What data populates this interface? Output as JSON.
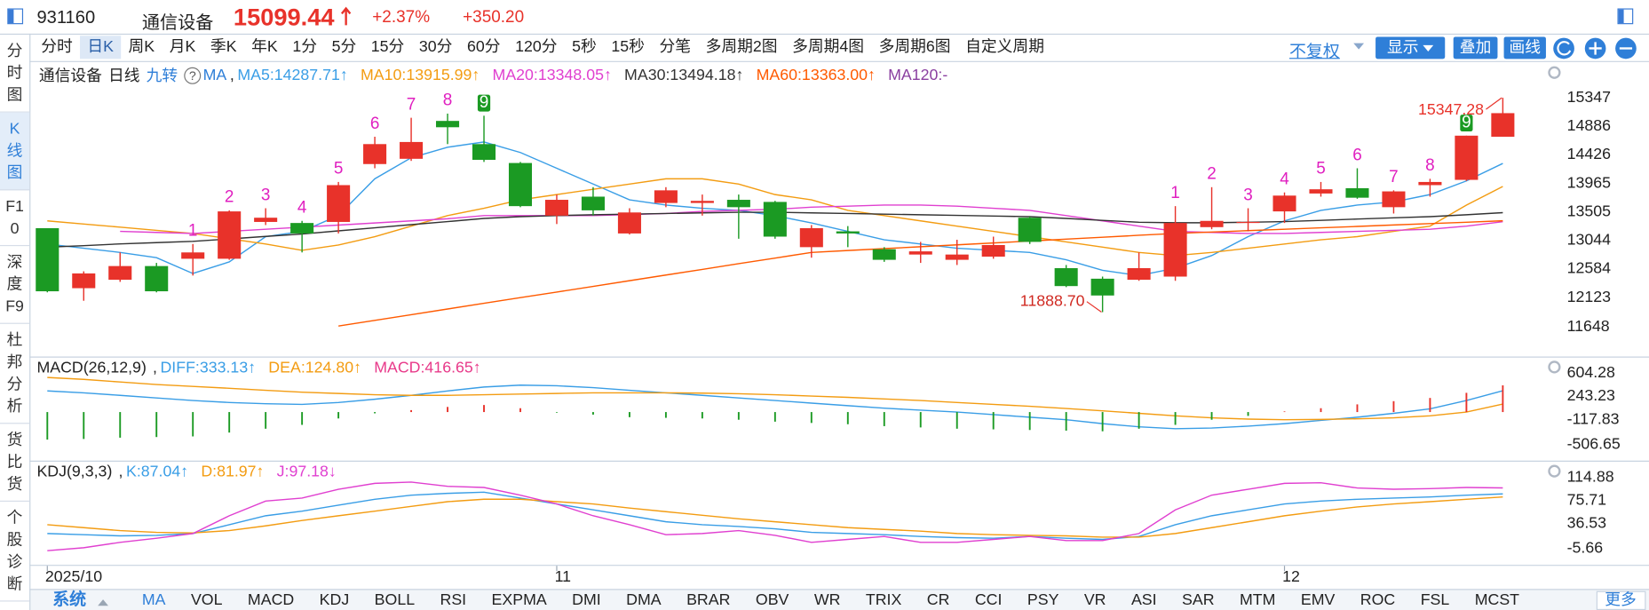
{
  "header": {
    "code": "931160",
    "name": "通信设备",
    "price": 15099.44,
    "change_pct": "+2.37%",
    "change": "+350.20"
  },
  "side_tabs": [
    "分时图",
    "K线图",
    "F10",
    "深度F9",
    "杜邦分析",
    "货比货",
    "个股诊断"
  ],
  "side_active": 1,
  "period_tabs": [
    "分时",
    "日K",
    "周K",
    "月K",
    "季K",
    "年K",
    "1分",
    "5分",
    "15分",
    "30分",
    "60分",
    "120分",
    "5秒",
    "15秒",
    "分笔",
    "多周期2图",
    "多周期4图",
    "多周期6图",
    "自定义周期"
  ],
  "period_active": 1,
  "toolbar": {
    "fq": "不复权",
    "show": "显示",
    "overlay": "叠加",
    "draw": "画线"
  },
  "indicator_tabs": {
    "system": "系统",
    "items": [
      "MA",
      "VOL",
      "MACD",
      "KDJ",
      "BOLL",
      "RSI",
      "EXPMA",
      "DMI",
      "DMA",
      "BRAR",
      "OBV",
      "WR",
      "TRIX",
      "CR",
      "CCI",
      "PSY",
      "VR",
      "ASI",
      "SAR",
      "MTM",
      "EMV",
      "ROC",
      "FSL",
      "MCST"
    ],
    "active": 0,
    "more": "更多"
  },
  "chart_data": [
    {
      "type": "candlestick",
      "title": "通信设备",
      "period": "日线",
      "td_name": "九转",
      "help": "?",
      "indicator": "MA",
      "separator": ",",
      "categories": [
        "2025/10",
        null,
        null,
        null,
        null,
        null,
        null,
        null,
        null,
        null,
        null,
        null,
        null,
        null,
        "11",
        null,
        null,
        null,
        null,
        null,
        null,
        null,
        null,
        null,
        null,
        null,
        null,
        null,
        null,
        null,
        null,
        null,
        null,
        null,
        "12",
        null,
        null,
        null,
        null,
        null,
        null
      ],
      "open": [
        13243,
        12275,
        12411,
        12632,
        12750,
        12750,
        13344,
        13327,
        13344,
        14278,
        14363,
        14974,
        14600,
        14295,
        13446,
        13752,
        13158,
        13650,
        13650,
        13701,
        13667,
        12937,
        13192,
        12903,
        12818,
        12733,
        12784,
        13412,
        12598,
        12428,
        12411,
        12462,
        13260,
        13327,
        13514,
        13803,
        13888,
        13582,
        13938,
        14023,
        14719
      ],
      "high": [
        13243,
        12547,
        12852,
        12683,
        12988,
        13531,
        13565,
        13361,
        13989,
        14719,
        15025,
        15092,
        15058,
        14312,
        13786,
        13905,
        13565,
        13905,
        13786,
        13786,
        13684,
        13294,
        13277,
        12937,
        13022,
        13056,
        13107,
        13429,
        12649,
        12462,
        12852,
        13599,
        13905,
        13565,
        13820,
        13989,
        14210,
        13854,
        14040,
        14736,
        15347.28
      ],
      "low": [
        12208,
        12072,
        12377,
        12208,
        12479,
        12733,
        13294,
        12852,
        13158,
        14210,
        14329,
        14600,
        14312,
        13582,
        13310,
        13446,
        13141,
        13582,
        13446,
        13073,
        13073,
        12767,
        12937,
        12700,
        12683,
        12649,
        12750,
        12988,
        12292,
        11888.7,
        12394,
        12394,
        13226,
        13192,
        13327,
        13752,
        13718,
        13480,
        13752,
        14006,
        14719
      ],
      "close": [
        12225,
        12513,
        12632,
        12225,
        12852,
        13514,
        13412,
        13158,
        13938,
        14600,
        14634,
        14872,
        14346,
        13599,
        13701,
        13531,
        13497,
        13854,
        13684,
        13582,
        13107,
        13243,
        13158,
        12733,
        12869,
        12818,
        12971,
        13022,
        12309,
        12157,
        12598,
        13327,
        13361,
        13344,
        13769,
        13871,
        13735,
        13837,
        13989,
        14736,
        15099.44
      ],
      "up_color": "#e8322a",
      "down_color": "#1b9a23",
      "series": [
        {
          "name": "MA5:14287.71↑",
          "color": "#3a9ee6",
          "values": [
            12988,
            12920,
            12852,
            12767,
            12513,
            12700,
            13107,
            13192,
            13446,
            14040,
            14380,
            14550,
            14634,
            14465,
            14210,
            13955,
            13701,
            13616,
            13565,
            13531,
            13446,
            13327,
            13192,
            13056,
            12988,
            12920,
            12886,
            12852,
            12733,
            12564,
            12479,
            12598,
            12801,
            13107,
            13361,
            13531,
            13616,
            13667,
            13786,
            14006,
            14287.71
          ]
        },
        {
          "name": "MA10:13915.99↑",
          "color": "#f39c12",
          "values": [
            13361,
            13310,
            13260,
            13209,
            13158,
            13073,
            12988,
            12886,
            12971,
            13107,
            13277,
            13446,
            13565,
            13701,
            13786,
            13871,
            13955,
            14040,
            14040,
            13955,
            13786,
            13701,
            13531,
            13446,
            13361,
            13277,
            13192,
            13107,
            13022,
            12937,
            12852,
            12801,
            12852,
            12920,
            12988,
            13056,
            13107,
            13192,
            13277,
            13616,
            13915.99
          ]
        },
        {
          "name": "MA20:13348.05↑",
          "color": "#e040d0",
          "values": [
            null,
            null,
            13192,
            13175,
            13158,
            13192,
            13226,
            13260,
            13294,
            13327,
            13361,
            13395,
            13446,
            13446,
            13446,
            13446,
            13463,
            13480,
            13514,
            13531,
            13548,
            13582,
            13599,
            13616,
            13616,
            13599,
            13565,
            13531,
            13446,
            13361,
            13277,
            13192,
            13175,
            13158,
            13158,
            13175,
            13192,
            13209,
            13226,
            13277,
            13348.05
          ]
        },
        {
          "name": "MA30:13494.18↑",
          "color": "#333333",
          "values": [
            12937,
            12960,
            12990,
            13010,
            13030,
            13070,
            13110,
            13150,
            13200,
            13250,
            13300,
            13350,
            13400,
            13430,
            13446,
            13460,
            13470,
            13480,
            13490,
            13500,
            13500,
            13490,
            13480,
            13470,
            13460,
            13450,
            13440,
            13430,
            13400,
            13370,
            13340,
            13330,
            13330,
            13340,
            13350,
            13370,
            13390,
            13410,
            13430,
            13460,
            13494.18
          ]
        },
        {
          "name": "MA60:13363.00↑",
          "color": "#ff5a00",
          "values": [
            null,
            null,
            null,
            null,
            null,
            null,
            null,
            null,
            11665,
            11756,
            11848,
            11939,
            12030,
            12122,
            12213,
            12304,
            12396,
            12487,
            12578,
            12670,
            12761,
            12852,
            12883,
            12913,
            12944,
            12975,
            13005,
            13036,
            13066,
            13097,
            13128,
            13158,
            13181,
            13204,
            13226,
            13249,
            13272,
            13295,
            13318,
            13340,
            13363.0
          ]
        }
      ],
      "legend_note": "MA120:-",
      "legend_note_color": "#8a3fa0",
      "td_counts": [
        null,
        null,
        null,
        null,
        1,
        2,
        3,
        4,
        5,
        6,
        7,
        8,
        9,
        null,
        null,
        null,
        null,
        null,
        null,
        null,
        null,
        null,
        null,
        null,
        null,
        null,
        null,
        null,
        null,
        null,
        null,
        1,
        2,
        3,
        4,
        5,
        6,
        7,
        8,
        9,
        null
      ],
      "td_color": "#e020c0",
      "td_nine_color": "#1b9a23",
      "high_label": "15347.28",
      "low_label": "11888.70",
      "ylim": [
        11189,
        15907
      ],
      "yticks": [
        15347,
        14886,
        14426,
        13965,
        13505,
        13044,
        12584,
        12123,
        11648
      ]
    },
    {
      "type": "combo",
      "title": "MACD(26,12,9)",
      "separator": ",",
      "series": [
        {
          "name": "DIFF:333.13↑",
          "kind": "line",
          "color": "#3a9ee6",
          "values": [
            330,
            300,
            260,
            220,
            180,
            150,
            130,
            120,
            150,
            200,
            260,
            330,
            390,
            420,
            410,
            380,
            340,
            300,
            260,
            220,
            180,
            140,
            100,
            60,
            30,
            0,
            -40,
            -80,
            -120,
            -180,
            -230,
            -260,
            -250,
            -220,
            -180,
            -130,
            -80,
            -20,
            50,
            180,
            333.13
          ]
        },
        {
          "name": "DEA:124.80↑",
          "kind": "line",
          "color": "#f39c12",
          "values": [
            540,
            510,
            470,
            430,
            400,
            370,
            340,
            310,
            290,
            270,
            260,
            260,
            270,
            280,
            290,
            300,
            300,
            300,
            295,
            285,
            270,
            250,
            230,
            205,
            180,
            150,
            120,
            90,
            55,
            20,
            -20,
            -60,
            -90,
            -110,
            -120,
            -115,
            -105,
            -90,
            -60,
            0,
            124.8
          ]
        },
        {
          "name": "MACD:416.65↑",
          "kind": "bar",
          "color": "#e83a8a",
          "up_color": "#e8322a",
          "down_color": "#1b9a23",
          "values": [
            -430,
            -420,
            -400,
            -390,
            -380,
            -320,
            -260,
            -200,
            -100,
            -20,
            30,
            80,
            110,
            60,
            -10,
            -40,
            -80,
            -90,
            -100,
            -120,
            -150,
            -170,
            -190,
            -220,
            -240,
            -260,
            -270,
            -280,
            -290,
            -300,
            -260,
            -200,
            -120,
            -60,
            10,
            60,
            120,
            170,
            220,
            300,
            416.65
          ]
        }
      ],
      "ylim": [
        -742,
        850
      ],
      "yticks": [
        604.28,
        243.23,
        -117.83,
        -506.65
      ]
    },
    {
      "type": "combo",
      "title": "KDJ(9,3,3)",
      "separator": ",",
      "series": [
        {
          "name": "K:87.04↑",
          "kind": "line",
          "color": "#3a9ee6",
          "values": [
            20,
            18,
            16,
            17,
            20,
            35,
            50,
            58,
            68,
            78,
            85,
            88,
            90,
            80,
            70,
            60,
            50,
            40,
            35,
            32,
            28,
            22,
            20,
            18,
            15,
            13,
            12,
            15,
            12,
            10,
            15,
            35,
            50,
            60,
            70,
            75,
            78,
            80,
            82,
            85,
            87.04
          ]
        },
        {
          "name": "D:81.97↑",
          "kind": "line",
          "color": "#f39c12",
          "values": [
            35,
            30,
            25,
            22,
            21,
            25,
            33,
            42,
            50,
            58,
            66,
            74,
            78,
            78,
            74,
            70,
            63,
            57,
            51,
            45,
            40,
            35,
            30,
            27,
            24,
            20,
            18,
            17,
            16,
            14,
            14,
            20,
            30,
            40,
            50,
            58,
            65,
            70,
            74,
            78,
            81.97
          ]
        },
        {
          "name": "J:97.18↓",
          "kind": "line",
          "color": "#e040d0",
          "values": [
            -9,
            -4,
            5,
            12,
            20,
            50,
            75,
            80,
            95,
            105,
            107,
            100,
            98,
            85,
            70,
            50,
            35,
            18,
            20,
            25,
            17,
            5,
            10,
            15,
            5,
            5,
            10,
            15,
            8,
            8,
            20,
            60,
            85,
            95,
            105,
            106,
            97,
            95,
            96,
            98,
            97.18
          ]
        }
      ],
      "ylim": [
        -32.9,
        141.6
      ],
      "yticks": [
        114.88,
        75.71,
        36.53,
        -5.66
      ]
    }
  ]
}
